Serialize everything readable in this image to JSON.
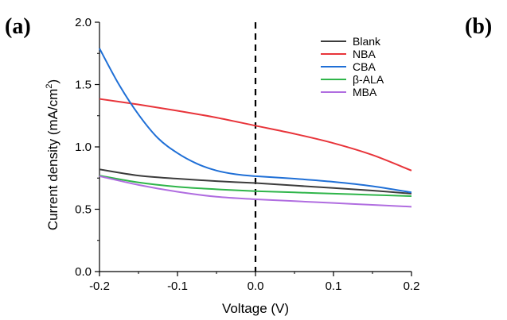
{
  "panels": {
    "left": "(a)",
    "right": "(b)"
  },
  "chart_data": {
    "type": "line",
    "title": "",
    "xlabel": "Voltage (V)",
    "ylabel_main": "Current density (mA/cm",
    "ylabel_sup": "2",
    "ylabel_close": ")",
    "xlim": [
      -0.2,
      0.2
    ],
    "ylim": [
      0.0,
      2.0
    ],
    "xticks": [
      -0.2,
      -0.1,
      0.0,
      0.1,
      0.2
    ],
    "xtick_labels": [
      "-0.2",
      "-0.1",
      "0.0",
      "0.1",
      "0.2"
    ],
    "yticks": [
      0.0,
      0.5,
      1.0,
      1.5,
      2.0
    ],
    "ytick_labels": [
      "0.0",
      "0.5",
      "1.0",
      "1.5",
      "2.0"
    ],
    "grid": false,
    "legend_position": "top-right",
    "vline": {
      "x": 0.0,
      "style": "dashed",
      "color": "#000000"
    },
    "series": [
      {
        "name": "Blank",
        "color": "#3c3c3c",
        "x": [
          -0.2,
          -0.15,
          -0.1,
          -0.05,
          0.0,
          0.05,
          0.1,
          0.15,
          0.2
        ],
        "y": [
          0.82,
          0.77,
          0.745,
          0.725,
          0.71,
          0.69,
          0.67,
          0.65,
          0.625
        ]
      },
      {
        "name": "NBA",
        "color": "#e8343a",
        "x": [
          -0.2,
          -0.15,
          -0.1,
          -0.05,
          0.0,
          0.05,
          0.1,
          0.15,
          0.2
        ],
        "y": [
          1.385,
          1.34,
          1.29,
          1.235,
          1.17,
          1.105,
          1.03,
          0.935,
          0.81
        ]
      },
      {
        "name": "CBA",
        "color": "#1f6fd6",
        "x": [
          -0.2,
          -0.175,
          -0.15,
          -0.125,
          -0.1,
          -0.075,
          -0.05,
          -0.025,
          0.0,
          0.05,
          0.1,
          0.15,
          0.2
        ],
        "y": [
          1.79,
          1.5,
          1.26,
          1.07,
          0.95,
          0.865,
          0.81,
          0.78,
          0.765,
          0.745,
          0.72,
          0.685,
          0.635
        ]
      },
      {
        "name": "β-ALA",
        "color": "#2fb54a",
        "x": [
          -0.2,
          -0.15,
          -0.1,
          -0.05,
          0.0,
          0.05,
          0.1,
          0.15,
          0.2
        ],
        "y": [
          0.77,
          0.715,
          0.68,
          0.66,
          0.645,
          0.635,
          0.625,
          0.615,
          0.605
        ]
      },
      {
        "name": "MBA",
        "color": "#b06de0",
        "x": [
          -0.2,
          -0.15,
          -0.1,
          -0.05,
          0.0,
          0.05,
          0.1,
          0.15,
          0.2
        ],
        "y": [
          0.765,
          0.695,
          0.64,
          0.6,
          0.58,
          0.565,
          0.55,
          0.535,
          0.52
        ]
      }
    ]
  }
}
